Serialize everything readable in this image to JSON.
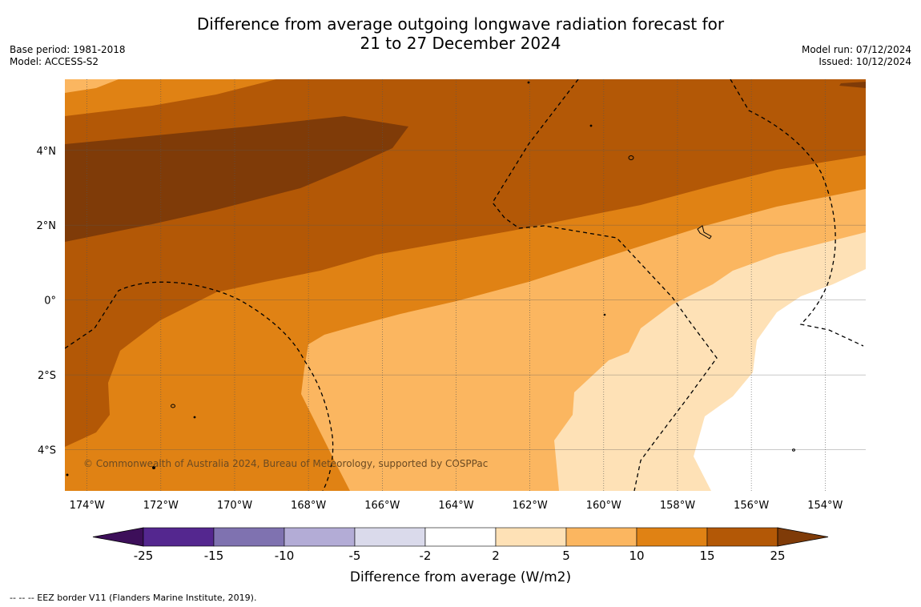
{
  "title_line1": "Difference from average outgoing longwave radiation forecast for",
  "title_line2": "21 to 27 December 2024",
  "meta_left": {
    "base_period": "Base period: 1981-2018",
    "model": "Model: ACCESS-S2"
  },
  "meta_right": {
    "model_run": "Model run: 07/12/2024",
    "issued": "Issued: 10/12/2024"
  },
  "map": {
    "lon_range": [
      -174.6,
      -152.9
    ],
    "lat_range": [
      -5.1,
      5.9
    ],
    "lon_ticks": [
      {
        "value": -174,
        "label": "174°W"
      },
      {
        "value": -172,
        "label": "172°W"
      },
      {
        "value": -170,
        "label": "170°W"
      },
      {
        "value": -168,
        "label": "168°W"
      },
      {
        "value": -166,
        "label": "166°W"
      },
      {
        "value": -164,
        "label": "164°W"
      },
      {
        "value": -162,
        "label": "162°W"
      },
      {
        "value": -160,
        "label": "160°W"
      },
      {
        "value": -158,
        "label": "158°W"
      },
      {
        "value": -156,
        "label": "156°W"
      },
      {
        "value": -154,
        "label": "154°W"
      }
    ],
    "lat_ticks": [
      {
        "value": 4,
        "label": "4°N"
      },
      {
        "value": 2,
        "label": "2°N"
      },
      {
        "value": 0,
        "label": "0°"
      },
      {
        "value": -2,
        "label": "2°S"
      },
      {
        "value": -4,
        "label": "4°S"
      }
    ],
    "copyright": "© Commonwealth of Australia 2024, Bureau of Meteorology, supported by COSPPac"
  },
  "colorbar": {
    "label": "Difference from average (W/m2)",
    "ticks": [
      "-25",
      "-15",
      "-10",
      "-5",
      "-2",
      "2",
      "5",
      "10",
      "15",
      "25"
    ],
    "colors": [
      "#3d0f5a",
      "#54278f",
      "#7f72b0",
      "#b3acd6",
      "#dadaeb",
      "#ffffff",
      "#fee1b6",
      "#fbb660",
      "#e08214",
      "#b35806",
      "#7f3b08"
    ]
  },
  "footnote": "--  --  -- EEZ border V11 (Flanders Marine Institute, 2019)."
}
